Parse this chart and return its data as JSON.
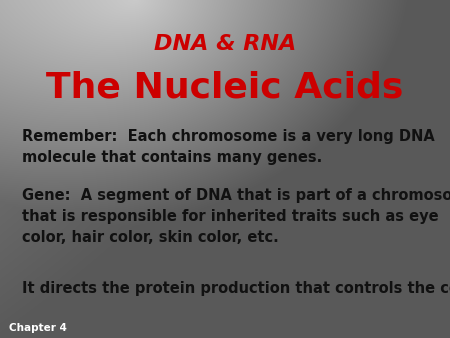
{
  "subtitle": "DNA & RNA",
  "title": "The Nucleic Acids",
  "subtitle_color": "#CC0000",
  "title_color": "#CC0000",
  "body_color": "#111111",
  "chapter_label": "Chapter 4",
  "chapter_color": "#ffffff",
  "paragraph1": "Remember:  Each chromosome is a very long DNA\nmolecule that contains many genes.",
  "paragraph2": "Gene:  A segment of DNA that is part of a chromosome\nthat is responsible for inherited traits such as eye\ncolor, hair color, skin color, etc.",
  "paragraph3": "It directs the protein production that controls the cell.",
  "subtitle_fontsize": 16,
  "title_fontsize": 26,
  "body_fontsize": 10.5,
  "chapter_fontsize": 7.5
}
